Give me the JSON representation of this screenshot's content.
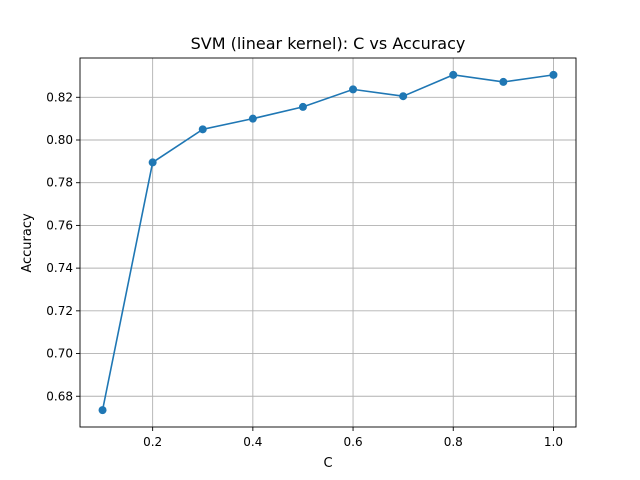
{
  "chart_data": {
    "type": "line",
    "title": "SVM (linear kernel): C vs Accuracy",
    "xlabel": "C",
    "ylabel": "Accuracy",
    "x": [
      0.1,
      0.2,
      0.3,
      0.4,
      0.5,
      0.6,
      0.7,
      0.8,
      0.9,
      1.0
    ],
    "series": [
      {
        "values": [
          0.6735,
          0.7895,
          0.805,
          0.81,
          0.8155,
          0.8237,
          0.8205,
          0.8305,
          0.8272,
          0.8305
        ],
        "color": "#1f77b4",
        "marker": "circle"
      }
    ],
    "xlim": [
      0.055,
      1.045
    ],
    "ylim": [
      0.6656,
      0.8384
    ],
    "xticks": [
      0.2,
      0.4,
      0.6,
      0.8,
      1.0
    ],
    "xtick_labels": [
      "0.2",
      "0.4",
      "0.6",
      "0.8",
      "1.0"
    ],
    "yticks": [
      0.68,
      0.7,
      0.72,
      0.74,
      0.76,
      0.78,
      0.8,
      0.82
    ],
    "ytick_labels": [
      "0.68",
      "0.70",
      "0.72",
      "0.74",
      "0.76",
      "0.78",
      "0.80",
      "0.82"
    ],
    "grid": true,
    "legend": false
  }
}
